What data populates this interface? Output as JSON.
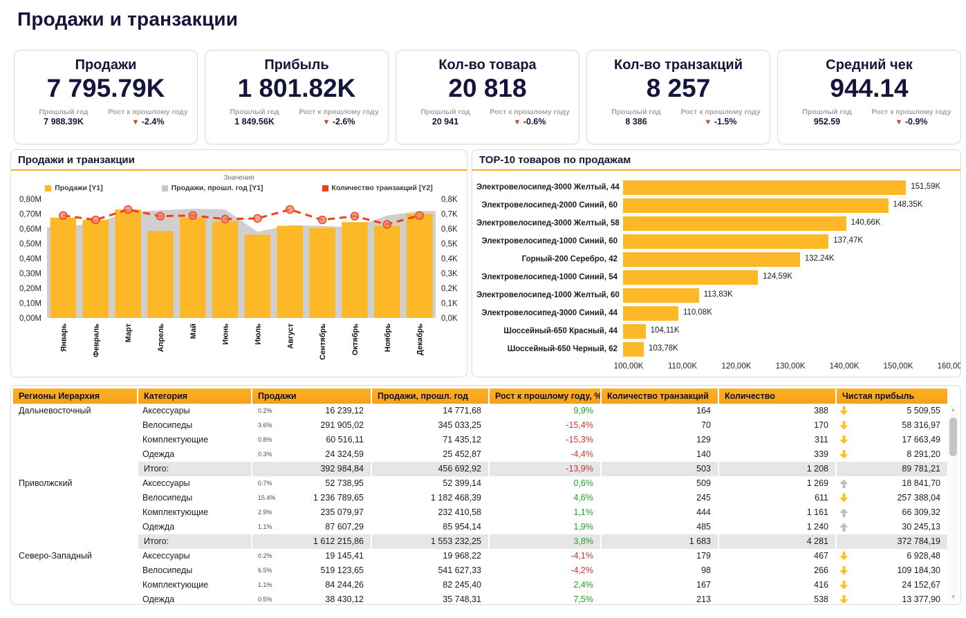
{
  "page_title": "Продажи и транзакции",
  "kpi_labels": {
    "prev": "Прошлый год",
    "growth": "Рост к прошлому году"
  },
  "kpi_cards": [
    {
      "title": "Продажи",
      "value": "7 795.79K",
      "prev": "7 988.39K",
      "growth": "-2.4%"
    },
    {
      "title": "Прибыль",
      "value": "1 801.82K",
      "prev": "1 849.56K",
      "growth": "-2.6%"
    },
    {
      "title": "Кол-во товара",
      "value": "20 818",
      "prev": "20 941",
      "growth": "-0.6%"
    },
    {
      "title": "Кол-во транзакций",
      "value": "8 257",
      "prev": "8 386",
      "growth": "-1.5%"
    },
    {
      "title": "Средний чек",
      "value": "944.14",
      "prev": "952.59",
      "growth": "-0.9%"
    }
  ],
  "colors": {
    "accent_amber": "#fcb827",
    "prev_year_gray": "#cfcfcf",
    "line_red": "#f23c14",
    "positive_green": "#1fa11f",
    "negative_red": "#c93434",
    "arrow_down_yellow": "#ffc020",
    "arrow_up_gray": "#bdbdbd",
    "navy_text": "#14143c"
  },
  "chart_data": [
    {
      "type": "combo-bar-area-line",
      "title": "Продажи и транзакции",
      "legend_title": "Значения",
      "legend": [
        {
          "label": "Продажи [Y1]",
          "color": "#fcb827"
        },
        {
          "label": "Продажи, прошл. год [Y1]",
          "color": "#c9c9c9"
        },
        {
          "label": "Количество транзакций [Y2]",
          "color": "#f23c14"
        }
      ],
      "categories": [
        "Январь",
        "Февраль",
        "Март",
        "Апрель",
        "Май",
        "Июнь",
        "Июль",
        "Август",
        "Сентябрь",
        "Октябрь",
        "Ноябрь",
        "Декабрь"
      ],
      "series": [
        {
          "name": "Продажи",
          "type": "bar",
          "axis": "Y1",
          "unit": "M",
          "values": [
            0.675,
            0.66,
            0.73,
            0.585,
            0.675,
            0.65,
            0.56,
            0.62,
            0.605,
            0.645,
            0.62,
            0.7
          ]
        },
        {
          "name": "Продажи, прошл. год",
          "type": "area",
          "axis": "Y1",
          "unit": "M",
          "values": [
            0.61,
            0.64,
            0.71,
            0.725,
            0.735,
            0.73,
            0.58,
            0.625,
            0.62,
            0.61,
            0.69,
            0.72
          ]
        },
        {
          "name": "Количество транзакций",
          "type": "line",
          "axis": "Y2",
          "unit": "K",
          "values": [
            0.69,
            0.66,
            0.73,
            0.685,
            0.69,
            0.665,
            0.67,
            0.73,
            0.66,
            0.685,
            0.63,
            0.69
          ]
        }
      ],
      "y1": {
        "min": 0,
        "max": 0.8,
        "step": 0.1,
        "suffix": "M"
      },
      "y2": {
        "min": 0,
        "max": 0.8,
        "step": 0.1,
        "suffix": "K"
      },
      "grid": false,
      "legend_position": "top"
    },
    {
      "type": "bar-horizontal",
      "title": "ТОР-10 товаров по продажам",
      "categories": [
        "Электровелосипед-3000 Желтый, 44",
        "Электровелосипед-2000 Синий, 60",
        "Электровелосипед-3000 Желтый, 58",
        "Электровелосипед-1000 Синий, 60",
        "Горный-200 Серебро, 42",
        "Электровелосипед-1000 Синий, 54",
        "Электровелосипед-1000 Желтый, 60",
        "Электровелосипед-3000 Синий, 44",
        "Шоссейный-650 Красный, 44",
        "Шоссейный-650 Черный, 62"
      ],
      "values": [
        151.59,
        148.35,
        140.66,
        137.47,
        132.24,
        124.59,
        113.83,
        110.08,
        104.11,
        103.78
      ],
      "value_labels": [
        "151,59K",
        "148,35K",
        "140,66K",
        "137,47K",
        "132,24K",
        "124,59K",
        "113,83K",
        "110,08K",
        "104,11K",
        "103,78K"
      ],
      "xaxis": {
        "min": 100,
        "max": 160,
        "tick_labels": [
          "100,00K",
          "110,00K",
          "120,00K",
          "130,00K",
          "140,00K",
          "150,00K",
          "160,00K"
        ]
      },
      "bar_color": "#fcb827",
      "grid": false
    }
  ],
  "table": {
    "columns": [
      "Регионы Иерархия",
      "Категория",
      "Продажи",
      "Продажи, прошл. год",
      "Рост к прошлому году, %",
      "Количество транзакций",
      "Количество",
      "Чистая прибыль"
    ],
    "total_label": "Итого:",
    "groups": [
      {
        "region": "Дальневосточный",
        "rows": [
          {
            "category": "Аксессуары",
            "share": "0.2%",
            "sales": "16 239,12",
            "sales_prev": "14 771,68",
            "growth": "9,9%",
            "transactions": "164",
            "quantity": "388",
            "profit_arrow": "down",
            "profit": "5 509,55"
          },
          {
            "category": "Велосипеды",
            "share": "3.6%",
            "sales": "291 905,02",
            "sales_prev": "345 033,25",
            "growth": "-15,4%",
            "transactions": "70",
            "quantity": "170",
            "profit_arrow": "down",
            "profit": "58 316,97"
          },
          {
            "category": "Комплектующие",
            "share": "0.8%",
            "sales": "60 516,11",
            "sales_prev": "71 435,12",
            "growth": "-15,3%",
            "transactions": "129",
            "quantity": "311",
            "profit_arrow": "down",
            "profit": "17 663,49"
          },
          {
            "category": "Одежда",
            "share": "0.3%",
            "sales": "24 324,59",
            "sales_prev": "25 452,87",
            "growth": "-4,4%",
            "transactions": "140",
            "quantity": "339",
            "profit_arrow": "down",
            "profit": "8 291,20"
          }
        ],
        "total": {
          "sales": "392 984,84",
          "sales_prev": "456 692,92",
          "growth": "-13,9%",
          "transactions": "503",
          "quantity": "1 208",
          "profit": "89 781,21"
        }
      },
      {
        "region": "Приволжский",
        "rows": [
          {
            "category": "Аксессуары",
            "share": "0.7%",
            "sales": "52 738,95",
            "sales_prev": "52 399,14",
            "growth": "0,6%",
            "transactions": "509",
            "quantity": "1 269",
            "profit_arrow": "up",
            "profit": "18 841,70"
          },
          {
            "category": "Велосипеды",
            "share": "15.4%",
            "sales": "1 236 789,65",
            "sales_prev": "1 182 468,39",
            "growth": "4,6%",
            "transactions": "245",
            "quantity": "611",
            "profit_arrow": "down",
            "profit": "257 388,04"
          },
          {
            "category": "Комплектующие",
            "share": "2.9%",
            "sales": "235 079,97",
            "sales_prev": "232 410,58",
            "growth": "1,1%",
            "transactions": "444",
            "quantity": "1 161",
            "profit_arrow": "up",
            "profit": "66 309,32"
          },
          {
            "category": "Одежда",
            "share": "1.1%",
            "sales": "87 607,29",
            "sales_prev": "85 954,14",
            "growth": "1,9%",
            "transactions": "485",
            "quantity": "1 240",
            "profit_arrow": "up",
            "profit": "30 245,13"
          }
        ],
        "total": {
          "sales": "1 612 215,86",
          "sales_prev": "1 553 232,25",
          "growth": "3,8%",
          "transactions": "1 683",
          "quantity": "4 281",
          "profit": "372 784,19"
        }
      },
      {
        "region": "Северо-Западный",
        "rows": [
          {
            "category": "Аксессуары",
            "share": "0.2%",
            "sales": "19 145,41",
            "sales_prev": "19 968,22",
            "growth": "-4,1%",
            "transactions": "179",
            "quantity": "467",
            "profit_arrow": "down",
            "profit": "6 928,48"
          },
          {
            "category": "Велосипеды",
            "share": "6.5%",
            "sales": "519 123,65",
            "sales_prev": "541 627,33",
            "growth": "-4,2%",
            "transactions": "98",
            "quantity": "266",
            "profit_arrow": "down",
            "profit": "109 184,30"
          },
          {
            "category": "Комплектующие",
            "share": "1.1%",
            "sales": "84 244,26",
            "sales_prev": "82 245,40",
            "growth": "2,4%",
            "transactions": "167",
            "quantity": "416",
            "profit_arrow": "down",
            "profit": "24 152,67"
          },
          {
            "category": "Одежда",
            "share": "0.5%",
            "sales": "38 430,12",
            "sales_prev": "35 748,31",
            "growth": "7,5%",
            "transactions": "213",
            "quantity": "538",
            "profit_arrow": "down",
            "profit": "13 377,90"
          }
        ],
        "total": null
      }
    ]
  }
}
